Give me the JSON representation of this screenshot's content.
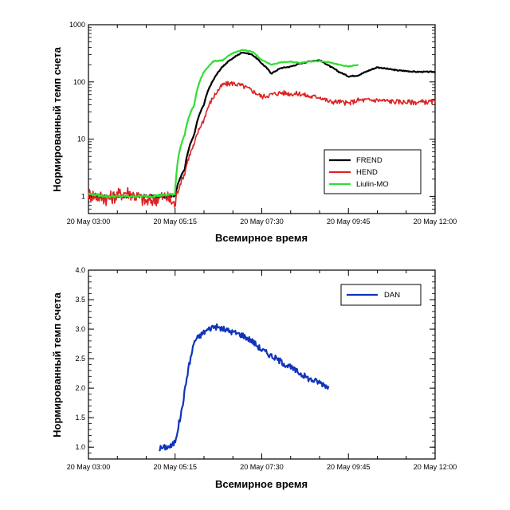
{
  "chart_data": [
    {
      "type": "line",
      "xlabel": "Всемирное время",
      "ylabel": "Нормированный темп счета",
      "y_scale": "log",
      "ylim": [
        0.5,
        1000
      ],
      "xlim": [
        "2021-05-20T03:00",
        "2021-05-20T12:00"
      ],
      "x_tick_labels": [
        "20 May 03:00",
        "20 May 05:15",
        "20 May 07:30",
        "20 May 09:45",
        "20 May 12:00"
      ],
      "y_tick_labels": [
        "1",
        "10",
        "100",
        "1000"
      ],
      "legend_position": "lower-right",
      "series": [
        {
          "name": "FREND",
          "color": "#000000",
          "x": [
            "03:00",
            "03:30",
            "04:00",
            "04:30",
            "05:00",
            "05:15",
            "05:30",
            "05:45",
            "06:00",
            "06:15",
            "06:30",
            "06:45",
            "07:00",
            "07:15",
            "07:30",
            "07:45",
            "08:00",
            "08:15",
            "08:30",
            "08:45",
            "09:00",
            "09:15",
            "09:30",
            "09:45",
            "10:00",
            "10:30",
            "11:00",
            "11:30",
            "12:00"
          ],
          "y": [
            1.0,
            1.0,
            1.0,
            1.0,
            1.0,
            1.05,
            3,
            12,
            40,
            110,
            190,
            260,
            330,
            300,
            210,
            140,
            175,
            185,
            210,
            230,
            240,
            190,
            150,
            125,
            130,
            180,
            160,
            150,
            150
          ]
        },
        {
          "name": "HEND",
          "color": "#dd2222",
          "x": [
            "03:00",
            "03:30",
            "04:00",
            "04:30",
            "05:00",
            "05:15",
            "05:30",
            "05:45",
            "06:00",
            "06:15",
            "06:30",
            "06:45",
            "07:00",
            "07:15",
            "07:30",
            "07:45",
            "08:00",
            "08:15",
            "08:30",
            "08:45",
            "09:00",
            "09:15",
            "09:30",
            "09:45",
            "10:00",
            "10:30",
            "11:00",
            "11:30",
            "12:00"
          ],
          "y": [
            1.1,
            0.9,
            1.2,
            0.8,
            1.0,
            0.7,
            2.5,
            8,
            22,
            55,
            90,
            95,
            85,
            70,
            55,
            60,
            65,
            62,
            62,
            55,
            55,
            45,
            45,
            42,
            48,
            48,
            45,
            44,
            45
          ]
        },
        {
          "name": "Liulin-MO",
          "color": "#33dd33",
          "x": [
            "03:00",
            "03:30",
            "04:00",
            "04:30",
            "05:00",
            "05:15",
            "05:30",
            "05:45",
            "06:00",
            "06:15",
            "06:30",
            "06:45",
            "07:00",
            "07:15",
            "07:30",
            "07:45",
            "08:00",
            "08:15",
            "08:30",
            "08:45",
            "09:00",
            "09:15",
            "09:30",
            "09:45",
            "10:00"
          ],
          "y": [
            1.1,
            1.0,
            1.0,
            1.0,
            1.05,
            1.1,
            12,
            40,
            150,
            230,
            240,
            320,
            360,
            340,
            240,
            200,
            220,
            225,
            215,
            230,
            230,
            220,
            200,
            185,
            200
          ]
        }
      ]
    },
    {
      "type": "line",
      "xlabel": "Всемирное время",
      "ylabel": "Нормированный темп счета",
      "ylim": [
        0.8,
        4.0
      ],
      "xlim": [
        "2021-05-20T03:00",
        "2021-05-20T12:00"
      ],
      "x_tick_labels": [
        "20 May 03:00",
        "20 May 05:15",
        "20 May 07:30",
        "20 May 09:45",
        "20 May 12:00"
      ],
      "y_tick_labels": [
        "1.0",
        "1.5",
        "2.0",
        "2.5",
        "3.0",
        "3.5",
        "4.0"
      ],
      "legend_position": "top-right",
      "series": [
        {
          "name": "DAN",
          "color": "#1133bb",
          "x": [
            "04:50",
            "05:00",
            "05:10",
            "05:15",
            "05:25",
            "05:35",
            "05:45",
            "06:00",
            "06:15",
            "06:30",
            "06:45",
            "07:00",
            "07:15",
            "07:30",
            "07:45",
            "08:00",
            "08:15",
            "08:30",
            "08:45",
            "09:00",
            "09:15"
          ],
          "y": [
            0.98,
            1.0,
            1.02,
            1.1,
            1.6,
            2.3,
            2.8,
            2.95,
            3.05,
            3.0,
            2.95,
            2.9,
            2.8,
            2.65,
            2.55,
            2.45,
            2.35,
            2.25,
            2.15,
            2.1,
            2.02
          ]
        }
      ]
    }
  ]
}
